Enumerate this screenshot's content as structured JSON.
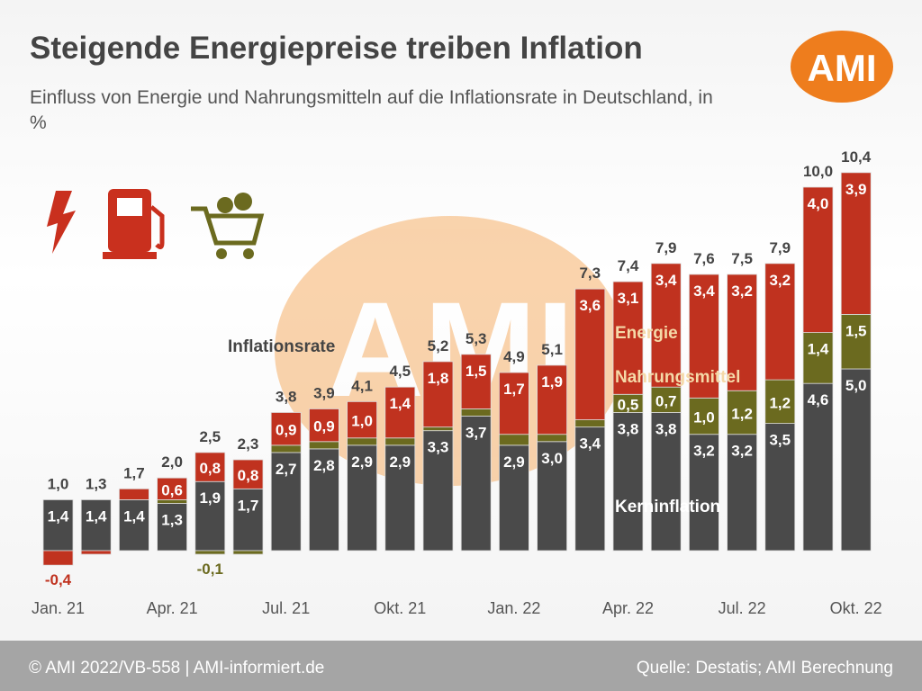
{
  "title": "Steigende Energiepreise treiben Inflation",
  "subtitle": "Einfluss von Energie und Nahrungsmitteln auf die Inflationsrate in Deutschland, in %",
  "logo": "AMI",
  "footer": {
    "left": "© AMI 2022/VB-558 | AMI-informiert.de",
    "right": "Quelle: Destatis; AMI Berechnung"
  },
  "icons": [
    "lightning-icon",
    "fuel-pump-icon",
    "shopping-cart-icon"
  ],
  "chart_data": {
    "type": "bar",
    "stacked": true,
    "categories": [
      "Jan. 21",
      "Feb. 21",
      "Mär. 21",
      "Apr. 21",
      "Mai 21",
      "Jun. 21",
      "Jul. 21",
      "Aug. 21",
      "Sep. 21",
      "Okt. 21",
      "Nov. 21",
      "Dez. 21",
      "Jan. 22",
      "Feb. 22",
      "Mär. 22",
      "Apr. 22",
      "Mai 22",
      "Jun. 22",
      "Jul. 22",
      "Aug. 22",
      "Sep. 22",
      "Okt. 22"
    ],
    "tick_labels": {
      "0": "Jan. 21",
      "3": "Apr. 21",
      "6": "Jul. 21",
      "9": "Okt. 21",
      "12": "Jan. 22",
      "15": "Apr. 22",
      "18": "Jul. 22",
      "21": "Okt. 22"
    },
    "series": [
      {
        "name": "Kerninflation",
        "color": "#4a4a4a",
        "values": [
          1.4,
          1.4,
          1.4,
          1.3,
          1.9,
          1.7,
          2.7,
          2.8,
          2.9,
          2.9,
          3.3,
          3.7,
          2.9,
          3.0,
          3.4,
          3.8,
          3.8,
          3.2,
          3.2,
          3.5,
          4.6,
          5.0
        ],
        "labels": [
          "1,4",
          "1,4",
          "1,4",
          "1,3",
          "1,9",
          "1,7",
          "2,7",
          "2,8",
          "2,9",
          "2,9",
          "3,3",
          "3,7",
          "2,9",
          "3,0",
          "3,4",
          "3,8",
          "3,8",
          "3,2",
          "3,2",
          "3,5",
          "4,6",
          "5,0"
        ]
      },
      {
        "name": "Nahrungsmittel",
        "color": "#6b6a1f",
        "values": [
          0,
          0,
          0,
          0.1,
          -0.1,
          -0.1,
          0.2,
          0.2,
          0.2,
          0.2,
          0.1,
          0.2,
          0.3,
          0.2,
          0.2,
          0.5,
          0.7,
          1.0,
          1.2,
          1.2,
          1.4,
          1.5
        ],
        "labels": [
          null,
          null,
          null,
          null,
          "-0,1",
          null,
          null,
          null,
          null,
          null,
          null,
          null,
          null,
          null,
          null,
          "0,5",
          "0,7",
          "1,0",
          "1,2",
          "1,2",
          "1,4",
          "1,5"
        ]
      },
      {
        "name": "Energie",
        "color": "#c0321f",
        "values": [
          -0.4,
          -0.1,
          0.3,
          0.6,
          0.8,
          0.8,
          0.9,
          0.9,
          1.0,
          1.4,
          1.8,
          1.5,
          1.7,
          1.9,
          3.6,
          3.1,
          3.4,
          3.4,
          3.2,
          3.2,
          4.0,
          3.9
        ],
        "labels": [
          "-0,4",
          null,
          null,
          "0,6",
          "0,8",
          "0,8",
          "0,9",
          "0,9",
          "1,0",
          "1,4",
          "1,8",
          "1,5",
          "1,7",
          "1,9",
          "3,6",
          "3,1",
          "3,4",
          "3,4",
          "3,2",
          "3,2",
          "4,0",
          "3,9"
        ]
      }
    ],
    "totals": {
      "name": "Inflationsrate",
      "values": [
        1.0,
        1.3,
        1.7,
        2.0,
        2.5,
        2.3,
        3.8,
        3.9,
        4.1,
        4.5,
        5.2,
        5.3,
        4.9,
        5.1,
        7.3,
        7.4,
        7.9,
        7.6,
        7.5,
        7.9,
        10.0,
        10.4
      ],
      "labels": [
        "1,0",
        "1,3",
        "1,7",
        "2,0",
        "2,5",
        "2,3",
        "3,8",
        "3,9",
        "4,1",
        "4,5",
        "5,2",
        "5,3",
        "4,9",
        "5,1",
        "7,3",
        "7,4",
        "7,9",
        "7,6",
        "7,5",
        "7,9",
        "10,0",
        "10,4"
      ]
    },
    "annotations": {
      "inflationsrate": "Inflationsrate",
      "energie": "Energie",
      "nahrung": "Nahrungsmittel",
      "kern": "Kerninflation"
    }
  }
}
